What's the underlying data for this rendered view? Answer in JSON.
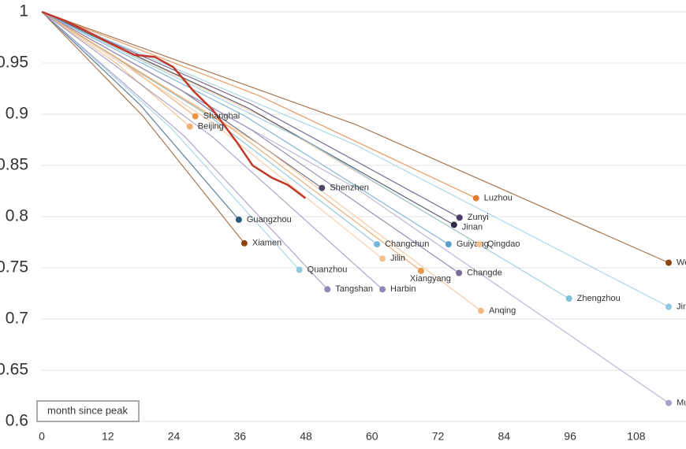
{
  "chart_data": {
    "type": "line",
    "x_label": "month since peak",
    "xlim": [
      0,
      117
    ],
    "ylim": [
      0.6,
      1
    ],
    "xticks": [
      0,
      12,
      24,
      36,
      48,
      60,
      72,
      84,
      96,
      108
    ],
    "yticks": [
      0.6,
      0.65,
      0.7,
      0.75,
      0.8,
      0.85,
      0.9,
      0.95,
      1
    ],
    "grid": true,
    "highlight": {
      "color": "#c0392b",
      "x": [
        0,
        3.9,
        8.2,
        12.5,
        16.8,
        20.5,
        23.9,
        27.5,
        31.1,
        35.4,
        38.3,
        41.8,
        44.7,
        47.9
      ],
      "values": [
        1,
        0.992,
        0.981,
        0.969,
        0.958,
        0.956,
        0.946,
        0.923,
        0.904,
        0.873,
        0.85,
        0.838,
        0.831,
        0.818
      ]
    },
    "series": [
      {
        "name": "Shanghai",
        "color": "#e8964a",
        "x": [
          0,
          14,
          27.9
        ],
        "values": [
          1,
          0.954,
          0.898
        ]
      },
      {
        "name": "Beijing",
        "color": "#f0b070",
        "x": [
          0,
          13.5,
          26.9
        ],
        "values": [
          1,
          0.95,
          0.888
        ]
      },
      {
        "name": "Shenzhen",
        "color": "#4a4a6a",
        "x": [
          0,
          25.5,
          50.9
        ],
        "values": [
          1,
          0.923,
          0.828
        ]
      },
      {
        "name": "Guangzhou",
        "color": "#2a5a7a",
        "x": [
          0,
          17.9,
          35.8
        ],
        "values": [
          1,
          0.909,
          0.797
        ]
      },
      {
        "name": "Xiamen",
        "color": "#8b4513",
        "x": [
          0,
          18.4,
          36.8
        ],
        "values": [
          1,
          0.898,
          0.774
        ]
      },
      {
        "name": "Quanzhou",
        "color": "#90c8e0",
        "x": [
          0,
          23.4,
          46.8
        ],
        "values": [
          1,
          0.887,
          0.748
        ]
      },
      {
        "name": "Tangshan",
        "color": "#9088b8",
        "x": [
          0,
          26,
          51.9
        ],
        "values": [
          1,
          0.878,
          0.729
        ]
      },
      {
        "name": "Harbin",
        "color": "#9088b8",
        "x": [
          0,
          31,
          61.9
        ],
        "values": [
          1,
          0.878,
          0.729
        ]
      },
      {
        "name": "Jilin",
        "color": "#f5c090",
        "x": [
          0,
          31,
          61.9
        ],
        "values": [
          1,
          0.892,
          0.759
        ]
      },
      {
        "name": "Changchun",
        "color": "#70b8d8",
        "x": [
          0,
          30.5,
          60.9
        ],
        "values": [
          1,
          0.898,
          0.773
        ]
      },
      {
        "name": "Xiangyang",
        "color": "#e8964a",
        "x": [
          0,
          34.5,
          68.9
        ],
        "values": [
          1,
          0.886,
          0.747
        ]
      },
      {
        "name": "Guiyang",
        "color": "#5a9ec8",
        "x": [
          0,
          37,
          73.9
        ],
        "values": [
          1,
          0.898,
          0.773
        ]
      },
      {
        "name": "Qingdao",
        "color": "#f5c090",
        "x": [
          0,
          40,
          79.5
        ],
        "values": [
          1,
          0.898,
          0.773
        ]
      },
      {
        "name": "Changde",
        "color": "#7a6a9a",
        "x": [
          0,
          38,
          75.8
        ],
        "values": [
          1,
          0.885,
          0.745
        ]
      },
      {
        "name": "Jinan",
        "color": "#2a2a4a",
        "x": [
          0,
          37.5,
          74.9
        ],
        "values": [
          1,
          0.906,
          0.792
        ]
      },
      {
        "name": "Zunyi",
        "color": "#4a3a6a",
        "x": [
          0,
          38,
          75.9
        ],
        "values": [
          1,
          0.91,
          0.799
        ]
      },
      {
        "name": "Luzhou",
        "color": "#e07a30",
        "x": [
          0,
          39.5,
          78.9
        ],
        "values": [
          1,
          0.918,
          0.818
        ]
      },
      {
        "name": "Anqing",
        "color": "#f5b880",
        "x": [
          0,
          40,
          79.8
        ],
        "values": [
          1,
          0.869,
          0.708
        ]
      },
      {
        "name": "Zhengzhou",
        "color": "#80c0d8",
        "x": [
          0,
          48,
          95.8
        ],
        "values": [
          1,
          0.874,
          0.72
        ]
      },
      {
        "name": "Wenz",
        "color": "#8b4513",
        "x": [
          0,
          57,
          113.9
        ],
        "values": [
          1,
          0.89,
          0.755
        ]
      },
      {
        "name": "Jinz",
        "color": "#90c8e0",
        "x": [
          0,
          57,
          113.9
        ],
        "values": [
          1,
          0.87,
          0.712
        ]
      },
      {
        "name": "Mudan",
        "color": "#a8a0c8",
        "x": [
          0,
          57,
          113.9
        ],
        "values": [
          1,
          0.828,
          0.618
        ]
      }
    ]
  }
}
